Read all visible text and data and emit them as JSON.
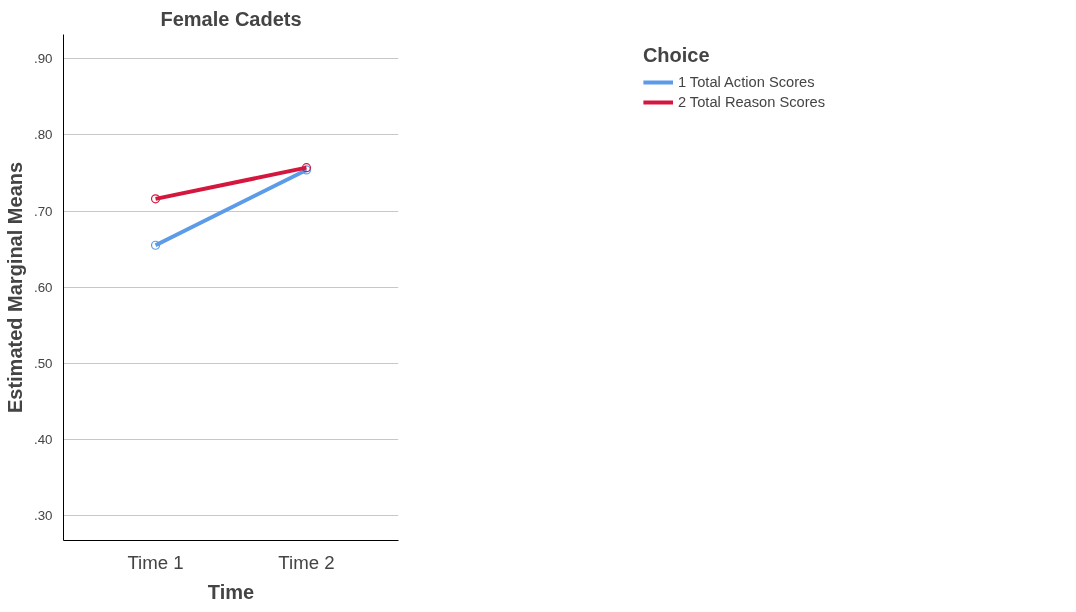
{
  "chart_data": {
    "type": "line",
    "title": "Female Cadets",
    "xlabel": "Time",
    "ylabel": "Estimated Marginal Means",
    "legend_title": "Choice",
    "categories": [
      "Time 1",
      "Time 2"
    ],
    "series": [
      {
        "name": "1 Total Action Scores",
        "color": "#5b9be8",
        "values": [
          0.655,
          0.754
        ]
      },
      {
        "name": "2 Total Reason Scores",
        "color": "#d4173f",
        "values": [
          0.716,
          0.757
        ]
      }
    ],
    "ylim": [
      0.267,
      0.932
    ],
    "yticks": [
      {
        "value": 0.3,
        "label": ".30"
      },
      {
        "value": 0.4,
        "label": ".40"
      },
      {
        "value": 0.5,
        "label": ".50"
      },
      {
        "value": 0.6,
        "label": ".60"
      },
      {
        "value": 0.7,
        "label": ".70"
      },
      {
        "value": 0.8,
        "label": ".80"
      },
      {
        "value": 0.9,
        "label": ".90"
      }
    ],
    "grid": "y",
    "legend": "right",
    "marker": "circle",
    "line_style": "solid"
  }
}
